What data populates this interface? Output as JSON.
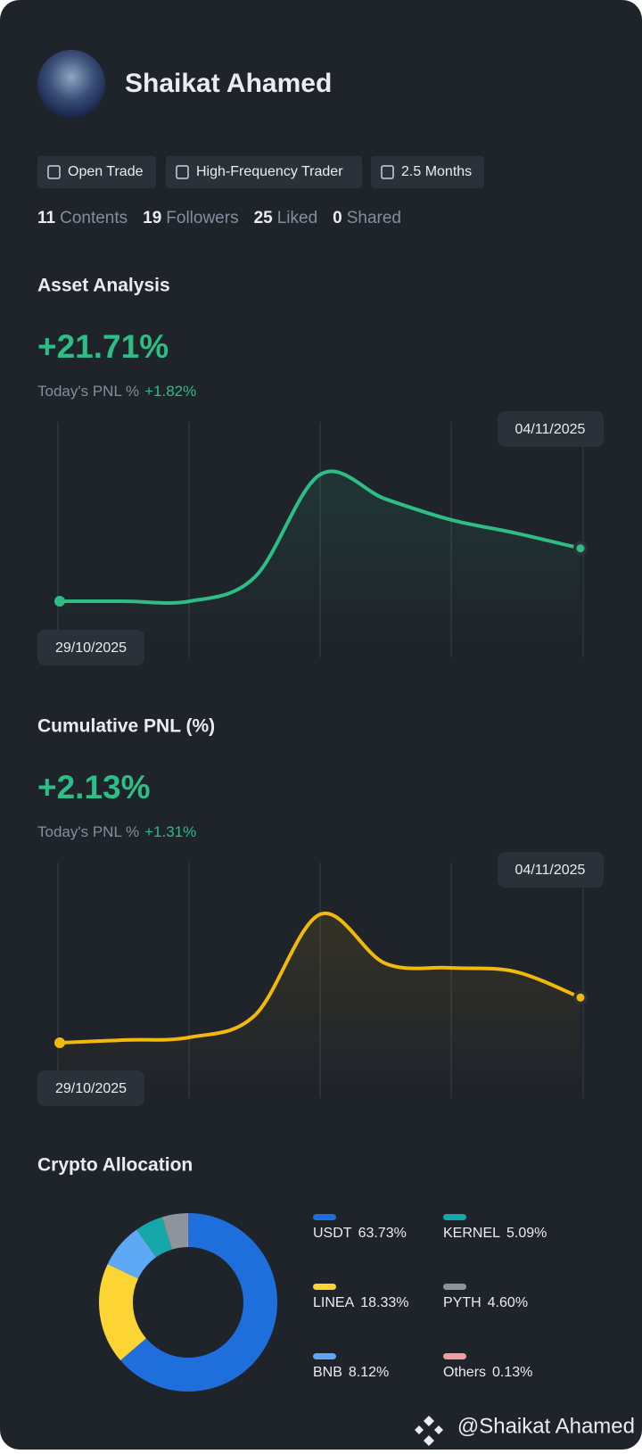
{
  "profile": {
    "name": "Shaikat Ahamed",
    "badges": [
      "Open Trade",
      "High-Frequency Trader",
      "2.5 Months"
    ],
    "stats": [
      {
        "value": 11,
        "label": "Contents"
      },
      {
        "value": 19,
        "label": "Followers"
      },
      {
        "value": 25,
        "label": "Liked"
      },
      {
        "value": 0,
        "label": "Shared"
      }
    ]
  },
  "chart_data": [
    {
      "type": "line",
      "title": "Asset Analysis",
      "headline": "+21.71%",
      "pnl_label": "Today's PNL %",
      "pnl_value": "+1.82%",
      "start_date": "29/10/2025",
      "end_date": "04/11/2025",
      "color": "#2ebd85",
      "values": [
        0,
        0,
        0,
        10,
        52,
        42,
        33.5,
        28,
        21.71
      ]
    },
    {
      "type": "line",
      "title": "Cumulative PNL (%)",
      "headline": "+2.13%",
      "pnl_label": "Today's PNL %",
      "pnl_value": "+1.31%",
      "start_date": "29/10/2025",
      "end_date": "04/11/2025",
      "color": "#f0b90b",
      "values": [
        0,
        0.13,
        0.26,
        1.3,
        6.05,
        3.74,
        3.53,
        3.35,
        2.13
      ]
    },
    {
      "type": "pie",
      "title": "Crypto Allocation",
      "categories": [
        "USDT",
        "LINEA",
        "BNB",
        "KERNEL",
        "PYTH",
        "Others"
      ],
      "values": [
        63.73,
        18.33,
        8.12,
        5.09,
        4.6,
        0.13
      ],
      "value_labels": [
        "63.73%",
        "18.33%",
        "8.12%",
        "5.09%",
        "4.60%",
        "0.13%"
      ],
      "colors": [
        "#1e6fdc",
        "#fcd535",
        "#5ea9f5",
        "#16a7a8",
        "#8e949c",
        "#f29ba2"
      ]
    }
  ],
  "watermark": "@Shaikat Ahamed"
}
